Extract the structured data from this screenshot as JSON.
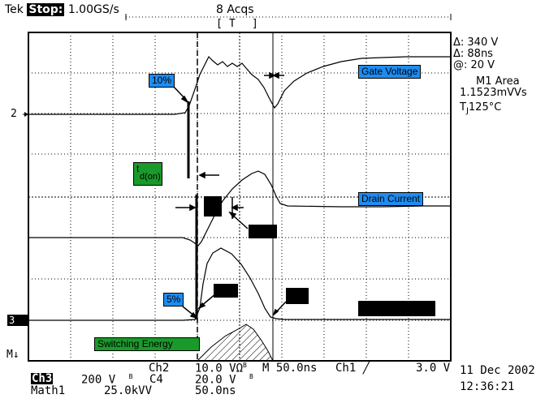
{
  "header": {
    "brand": "Tek",
    "status": "Stop:",
    "sample_rate": "1.00GS/s",
    "acquisitions": "8 Acqs"
  },
  "readouts": {
    "delta_v": "Δ: 340 V",
    "delta_t": "Δ: 88ns",
    "at": "@: 20 V",
    "measure_name": "M1 Area",
    "measure_value": "1.1523mVVs",
    "temperature_t": "T",
    "temperature_sub": "J",
    "temperature_val": "125°C"
  },
  "labels": {
    "gate_voltage": "Gate Voltage",
    "drain_current": "Drain Current",
    "ten_pct": "10%",
    "five_pct": "5%",
    "td_on_t": "t",
    "td_on_sub": "d(on)",
    "switching_energy": "Switching Energy"
  },
  "markers": {
    "ch2": "2",
    "ch3": "3",
    "math": "M"
  },
  "footer": {
    "ch2_label": "Ch2",
    "ch2_scale": "10.0 V",
    "ch2_unit": "Ω",
    "ch2_bw": "B",
    "time_prefix": "M",
    "time_scale": "50.0ns",
    "trigger_ch": "Ch1",
    "trigger_symbol": "╱",
    "trigger_level": "3.0 V",
    "date": "11 Dec 2002",
    "ch3_label": "Ch3",
    "ch3_scale": "200 V",
    "ch3_bw": "B",
    "ch4_label": "C4",
    "ch4_scale": "20.0 V",
    "ch4_bw": "B",
    "time": "12:36:21",
    "math_label": "Math1",
    "math_scale": "25.0kVV",
    "math_time": "50.0ns"
  },
  "colors": {
    "label_blue": "#1e8cf0",
    "label_green": "#1a9a2a",
    "trace": "#000000",
    "background": "#ffffff"
  }
}
